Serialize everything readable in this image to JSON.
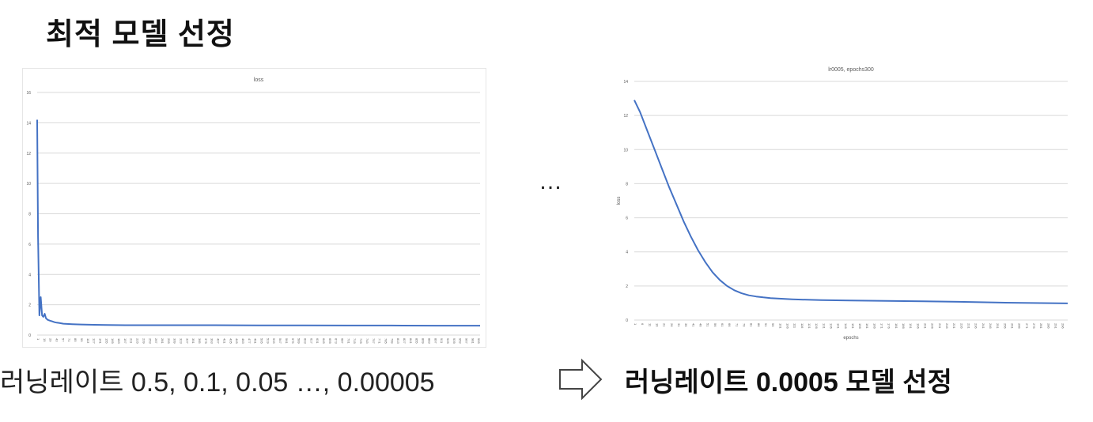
{
  "slide": {
    "title": "최적 모델 선정",
    "ellipsis": "…",
    "caption_left": "러닝레이트 0.5, 0.1, 0.05 …, 0.00005",
    "caption_right": "러닝레이트 0.0005 모델 선정"
  },
  "colors": {
    "line": "#4472c4",
    "grid": "#d9d9d9",
    "axis_text": "#595959"
  },
  "icons": {
    "arrow": "right-arrow-icon"
  },
  "chart_data": [
    {
      "type": "line",
      "title": "loss",
      "xlabel": "",
      "ylabel": "",
      "ylim": [
        0,
        16
      ],
      "yticks": [
        0,
        2,
        4,
        6,
        8,
        10,
        12,
        14,
        16
      ],
      "xlim": [
        1,
        1000
      ],
      "xticks": [
        1,
        15,
        29,
        43,
        57,
        71,
        85,
        99,
        113,
        127,
        141,
        155,
        169,
        183,
        197,
        211,
        225,
        239,
        253,
        267,
        281,
        295,
        309,
        323,
        337,
        351,
        365,
        379,
        393,
        407,
        421,
        435,
        449,
        463,
        477,
        491,
        505,
        519,
        533,
        547,
        561,
        575,
        589,
        603,
        617,
        631,
        645,
        659,
        673,
        687,
        701,
        715,
        729,
        743,
        757,
        771,
        785,
        799,
        813,
        827,
        841,
        855,
        869,
        883,
        897,
        911,
        925,
        939,
        953,
        967,
        981,
        995
      ],
      "grid": true,
      "series": [
        {
          "x": [
            1,
            3,
            6,
            9,
            12,
            15,
            18,
            21,
            25,
            30,
            35,
            40,
            45,
            50,
            60,
            80,
            100,
            130,
            160,
            200,
            300,
            400,
            500,
            600,
            700,
            800,
            900,
            1000
          ],
          "values": [
            14.2,
            6.5,
            1.3,
            2.5,
            1.3,
            1.2,
            1.4,
            1.1,
            1.0,
            0.95,
            0.9,
            0.85,
            0.82,
            0.8,
            0.75,
            0.72,
            0.7,
            0.68,
            0.66,
            0.65,
            0.65,
            0.65,
            0.64,
            0.64,
            0.63,
            0.63,
            0.62,
            0.62
          ]
        }
      ]
    },
    {
      "type": "line",
      "title": "lr0005, epochs300",
      "xlabel": "epochs",
      "ylabel": "loss",
      "ylim": [
        0,
        14
      ],
      "yticks": [
        0,
        2,
        4,
        6,
        8,
        10,
        12,
        14
      ],
      "xlim": [
        1,
        300
      ],
      "xticks": [
        1,
        6,
        11,
        16,
        21,
        26,
        31,
        36,
        41,
        46,
        51,
        56,
        61,
        66,
        71,
        76,
        81,
        86,
        91,
        96,
        101,
        106,
        111,
        116,
        121,
        126,
        131,
        136,
        141,
        146,
        151,
        156,
        161,
        166,
        171,
        176,
        181,
        186,
        191,
        196,
        201,
        206,
        211,
        216,
        221,
        226,
        231,
        236,
        241,
        246,
        251,
        256,
        261,
        266,
        271,
        276,
        281,
        286,
        291,
        296
      ],
      "grid": true,
      "series": [
        {
          "x": [
            1,
            5,
            10,
            15,
            20,
            25,
            30,
            35,
            40,
            45,
            50,
            55,
            60,
            65,
            70,
            75,
            80,
            85,
            90,
            95,
            100,
            110,
            120,
            130,
            150,
            175,
            200,
            225,
            250,
            275,
            300
          ],
          "values": [
            12.9,
            12.2,
            11.1,
            10.0,
            8.9,
            7.8,
            6.8,
            5.8,
            4.9,
            4.1,
            3.4,
            2.8,
            2.35,
            2.0,
            1.75,
            1.57,
            1.45,
            1.38,
            1.33,
            1.29,
            1.26,
            1.22,
            1.19,
            1.17,
            1.15,
            1.12,
            1.1,
            1.07,
            1.03,
            1.0,
            0.98
          ]
        }
      ]
    }
  ]
}
